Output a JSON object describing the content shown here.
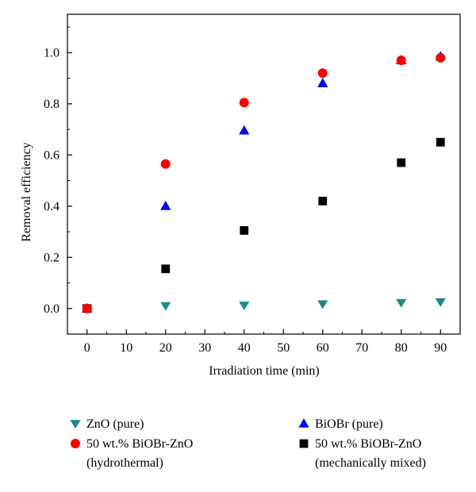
{
  "chart_data": {
    "type": "scatter",
    "xlabel": "Irradiation time (min)",
    "ylabel": "Removal efficiency",
    "xlim": [
      -5,
      95
    ],
    "ylim": [
      -0.1,
      1.15
    ],
    "xticks": [
      0,
      10,
      20,
      30,
      40,
      50,
      60,
      70,
      80,
      90
    ],
    "yticks": [
      0.0,
      0.2,
      0.4,
      0.6,
      0.8,
      1.0
    ],
    "xtick_labels": [
      "0",
      "10",
      "20",
      "30",
      "40",
      "50",
      "60",
      "70",
      "80",
      "90"
    ],
    "ytick_labels": [
      "0.0",
      "0.2",
      "0.4",
      "0.6",
      "0.8",
      "1.0"
    ],
    "grid": false,
    "legend_position": "bottom",
    "series": [
      {
        "name": "ZnO (pure)",
        "marker": "triangle-down",
        "color": "#1a8a8a",
        "x": [
          0,
          20,
          40,
          60,
          80,
          90
        ],
        "y": [
          0.0,
          0.01,
          0.012,
          0.017,
          0.022,
          0.025
        ]
      },
      {
        "name": "BiOBr (pure)",
        "marker": "triangle-up",
        "color": "#0000ff",
        "x": [
          0,
          20,
          40,
          60,
          80,
          90
        ],
        "y": [
          0.0,
          0.4,
          0.695,
          0.88,
          0.97,
          0.985
        ]
      },
      {
        "name": "50 wt.% BiOBr-ZnO\n(hydrothermal)",
        "marker": "circle",
        "color": "#ff0000",
        "x": [
          0,
          20,
          40,
          60,
          80,
          90
        ],
        "y": [
          0.0,
          0.565,
          0.805,
          0.92,
          0.97,
          0.98
        ]
      },
      {
        "name": "50 wt.% BiOBr-ZnO\n(mechanically mixed)",
        "marker": "square",
        "color": "#000000",
        "x": [
          0,
          20,
          40,
          60,
          80,
          90
        ],
        "y": [
          0.0,
          0.155,
          0.305,
          0.42,
          0.57,
          0.65
        ]
      }
    ]
  }
}
